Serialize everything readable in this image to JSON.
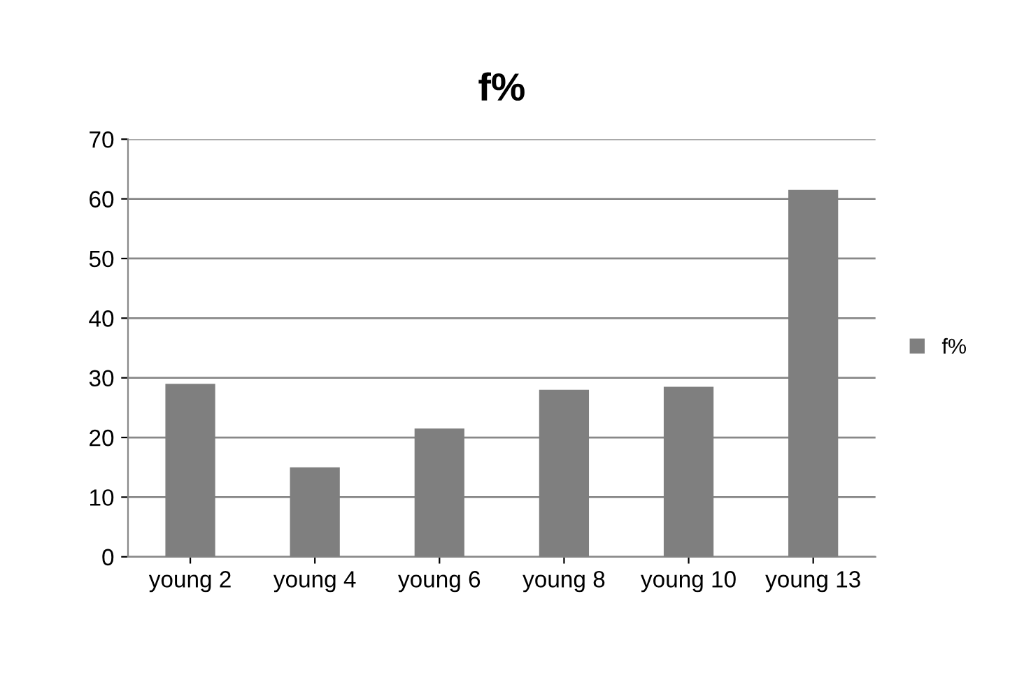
{
  "chart_data": {
    "type": "bar",
    "title": "f%",
    "categories": [
      "young 2",
      "young 4",
      "young 6",
      "young 8",
      "young 10",
      "young 13"
    ],
    "series": [
      {
        "name": "f%",
        "color": "#7f7f7f",
        "values": [
          29,
          15,
          21.5,
          28,
          28.5,
          61.5
        ]
      }
    ],
    "ylim": [
      0,
      70
    ],
    "yticks": [
      0,
      10,
      20,
      30,
      40,
      50,
      60,
      70
    ],
    "grid": "y",
    "legend": "right"
  }
}
